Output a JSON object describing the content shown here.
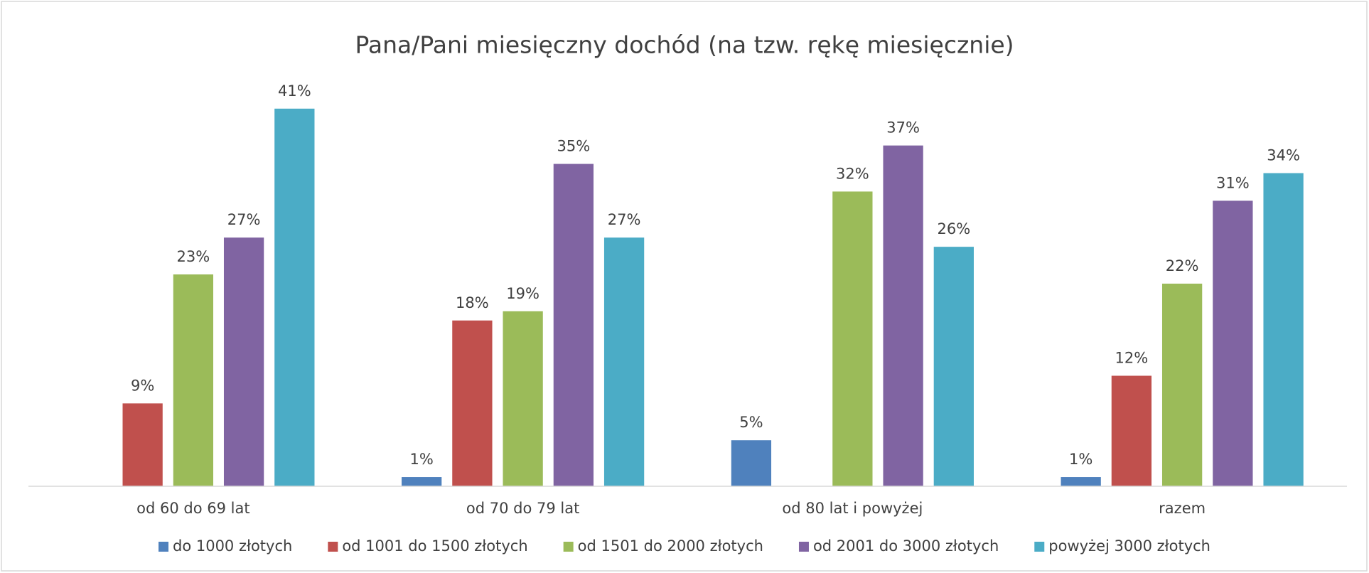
{
  "chart_data": {
    "type": "bar",
    "title": "Pana/Pani miesięczny dochód (na tzw. rękę miesięcznie)",
    "categories": [
      "od 60 do 69 lat",
      "od 70 do 79 lat",
      "od 80 lat i powyżej",
      "razem"
    ],
    "series": [
      {
        "name": "do 1000 złotych",
        "color": "#4f81bd",
        "values": [
          null,
          1,
          5,
          1
        ],
        "value_labels": [
          null,
          "1%",
          "5%",
          "1%"
        ]
      },
      {
        "name": "od 1001 do 1500 złotych",
        "color": "#c0504d",
        "values": [
          9,
          18,
          null,
          12
        ],
        "value_labels": [
          "9%",
          "18%",
          null,
          "12%"
        ]
      },
      {
        "name": "od 1501 do 2000 złotych",
        "color": "#9bbb59",
        "values": [
          23,
          19,
          32,
          22
        ],
        "value_labels": [
          "23%",
          "19%",
          "32%",
          "22%"
        ]
      },
      {
        "name": "od 2001 do 3000 złotych",
        "color": "#8064a2",
        "values": [
          27,
          35,
          37,
          31
        ],
        "value_labels": [
          "27%",
          "35%",
          "37%",
          "31%"
        ]
      },
      {
        "name": "powyżej 3000 złotych",
        "color": "#4bacc6",
        "values": [
          41,
          27,
          26,
          34
        ],
        "value_labels": [
          "41%",
          "27%",
          "26%",
          "34%"
        ]
      }
    ],
    "ylim": [
      0,
      45
    ],
    "legend": "bottom"
  }
}
